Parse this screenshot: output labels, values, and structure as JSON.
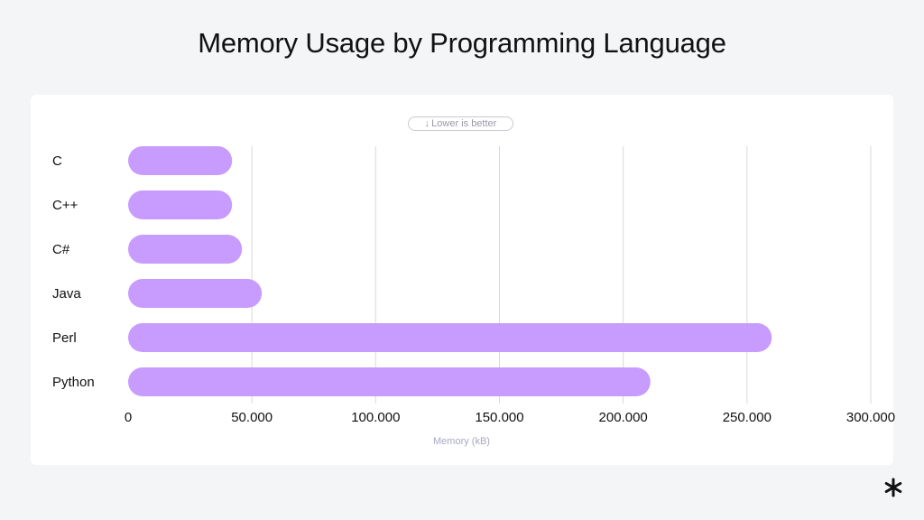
{
  "page": {
    "title": "Memory Usage by Programming Language",
    "badge": {
      "arrow": "↓",
      "text": "Lower is better"
    },
    "logo_icon": "asterisk-icon"
  },
  "colors": {
    "background": "#f4f5f7",
    "card": "#ffffff",
    "bar": "#c89bff",
    "grid": "#d9d9df",
    "axis_label": "#a7a8c3"
  },
  "chart_data": {
    "type": "bar",
    "orientation": "horizontal",
    "title": "Memory Usage by Programming Language",
    "xlabel": "Memory (kB)",
    "ylabel": "",
    "categories": [
      "C",
      "C++",
      "C#",
      "Java",
      "Perl",
      "Python"
    ],
    "values": [
      42000,
      42000,
      46000,
      54000,
      260000,
      211000
    ],
    "xlim": [
      0,
      300000
    ],
    "xticks": [
      0,
      50000,
      100000,
      150000,
      200000,
      250000,
      300000
    ],
    "xtick_labels": [
      "0",
      "50.000",
      "100.000",
      "150.000",
      "200.000",
      "250.000",
      "300.000"
    ],
    "grid": "vertical",
    "legend": "none",
    "annotation": "↓ Lower is better"
  }
}
